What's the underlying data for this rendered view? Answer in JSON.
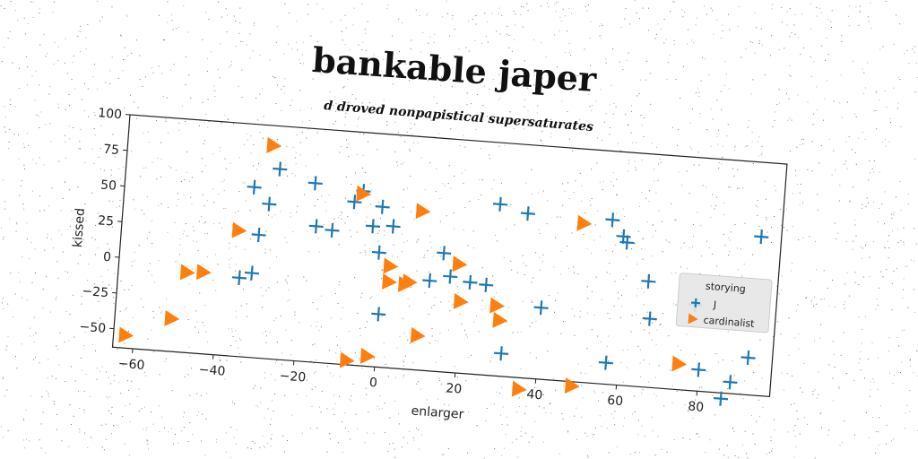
{
  "title": "bankable japer",
  "subtitle": "d droved nonpapistical supersaturates",
  "colors": {
    "j": "#1f77b4",
    "cardinalist": "#ff7f0e"
  },
  "chart_data": {
    "type": "scatter",
    "xlabel": "enlarger",
    "ylabel": "kissed",
    "xlim": [
      -65,
      98
    ],
    "ylim": [
      -63,
      100
    ],
    "xticks": [
      -60,
      -40,
      -20,
      0,
      20,
      40,
      60,
      80
    ],
    "yticks": [
      -50,
      -25,
      0,
      25,
      50,
      75,
      100
    ],
    "legend_title": "storying",
    "legend_position": "right",
    "series": [
      {
        "name": "J",
        "marker": "plus",
        "color": "#1f77b4",
        "points": [
          [
            -33,
            56
          ],
          [
            -27,
            70
          ],
          [
            -18,
            62
          ],
          [
            -29,
            45
          ],
          [
            -31,
            23
          ],
          [
            -35,
            -8
          ],
          [
            -32,
            -4
          ],
          [
            -17,
            32
          ],
          [
            -13,
            30
          ],
          [
            -8,
            51
          ],
          [
            -6,
            59
          ],
          [
            -1,
            49
          ],
          [
            -3,
            35
          ],
          [
            2,
            36
          ],
          [
            -1,
            17
          ],
          [
            0,
            -26
          ],
          [
            12,
            0
          ],
          [
            15,
            20
          ],
          [
            17,
            4
          ],
          [
            22,
            1
          ],
          [
            26,
            0
          ],
          [
            28,
            57
          ],
          [
            35,
            52
          ],
          [
            31,
            -47
          ],
          [
            40,
            -13
          ],
          [
            56,
            52
          ],
          [
            59,
            41
          ],
          [
            60,
            37
          ],
          [
            57,
            -48
          ],
          [
            66,
            11
          ],
          [
            67,
            -15
          ],
          [
            78,
            -3
          ],
          [
            80,
            -48
          ],
          [
            86,
            -67
          ],
          [
            88,
            -55
          ],
          [
            92,
            -37
          ],
          [
            93,
            48
          ]
        ]
      },
      {
        "name": "cardinalist",
        "marker": "triangle-right",
        "color": "#ff7f0e",
        "points": [
          [
            -29,
            86
          ],
          [
            -6,
            57
          ],
          [
            9,
            48
          ],
          [
            -36,
            25
          ],
          [
            -48,
            -7
          ],
          [
            -44,
            -6
          ],
          [
            2,
            8
          ],
          [
            2,
            -3
          ],
          [
            6,
            -4
          ],
          [
            7,
            -2
          ],
          [
            19,
            13
          ],
          [
            20,
            -13
          ],
          [
            29,
            -14
          ],
          [
            30,
            -24
          ],
          [
            10,
            -39
          ],
          [
            -51,
            -40
          ],
          [
            -62,
            -54
          ],
          [
            -7,
            -60
          ],
          [
            -2,
            -56
          ],
          [
            36,
            -71
          ],
          [
            49,
            -66
          ],
          [
            49,
            48
          ],
          [
            75,
            -45
          ]
        ]
      }
    ]
  }
}
